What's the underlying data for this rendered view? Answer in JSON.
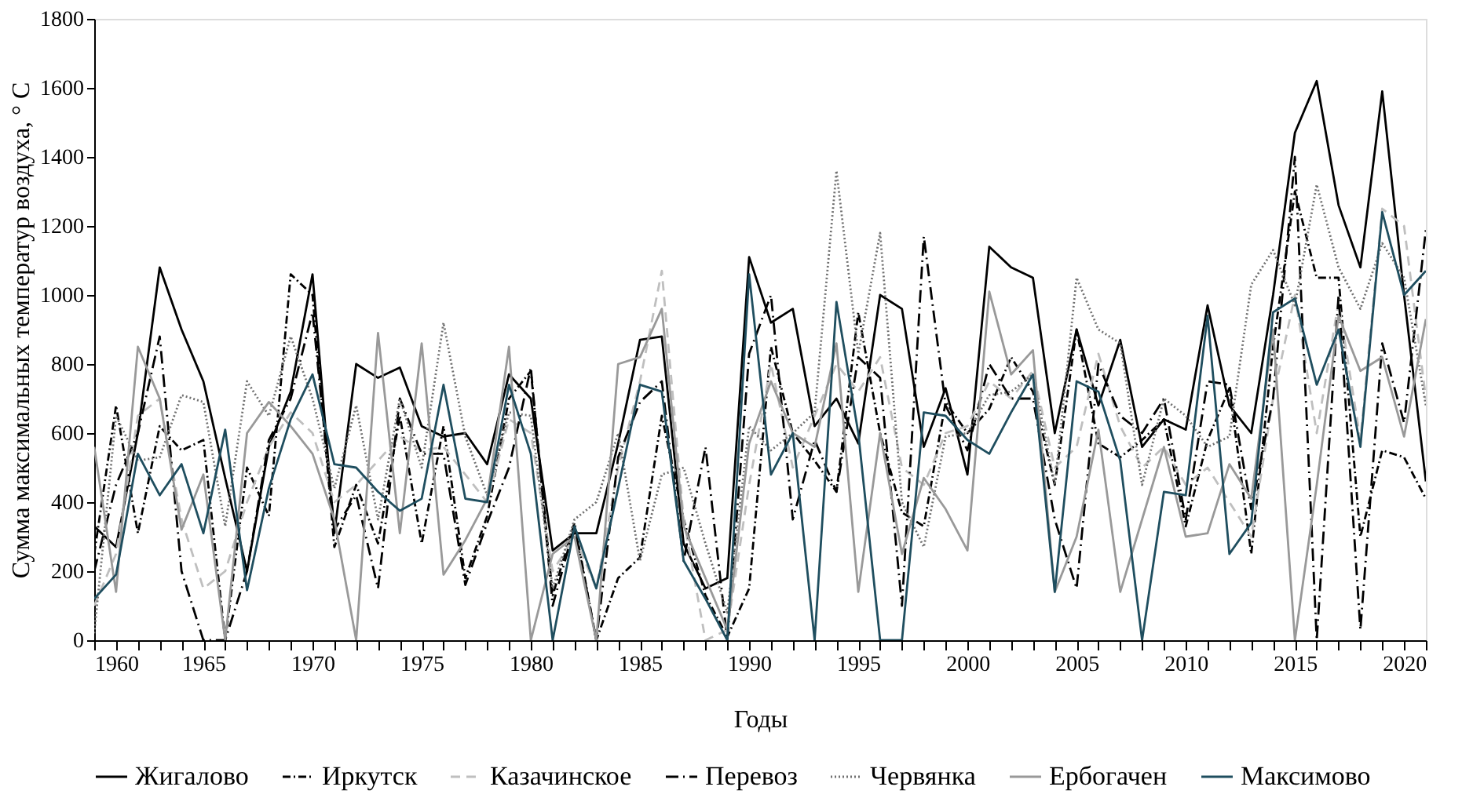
{
  "chart_data": {
    "type": "line",
    "xlabel": "Годы",
    "ylabel": "Сумма максимальных температур воздуха, ° С",
    "x": [
      1960,
      1961,
      1962,
      1963,
      1964,
      1965,
      1966,
      1967,
      1968,
      1969,
      1970,
      1971,
      1972,
      1973,
      1974,
      1975,
      1976,
      1977,
      1978,
      1979,
      1980,
      1981,
      1982,
      1983,
      1984,
      1985,
      1986,
      1987,
      1988,
      1989,
      1990,
      1991,
      1992,
      1993,
      1994,
      1995,
      1996,
      1997,
      1998,
      1999,
      2000,
      2001,
      2002,
      2003,
      2004,
      2005,
      2006,
      2007,
      2008,
      2009,
      2010,
      2011,
      2012,
      2013,
      2014,
      2015,
      2016,
      2017,
      2018,
      2019,
      2020,
      2021
    ],
    "xlim": [
      1960,
      2021
    ],
    "xticks": [
      1960,
      {
        "value": 1961,
        "label": null
      },
      {
        "value": 1962,
        "label": null
      },
      {
        "value": 1963,
        "label": null
      },
      {
        "value": 1964,
        "label": null
      },
      1965,
      {
        "value": 1966,
        "label": null
      },
      {
        "value": 1967,
        "label": null
      },
      {
        "value": 1968,
        "label": null
      },
      {
        "value": 1969,
        "label": null
      },
      1970,
      {
        "value": 1971,
        "label": null
      },
      {
        "value": 1972,
        "label": null
      },
      {
        "value": 1973,
        "label": null
      },
      {
        "value": 1974,
        "label": null
      },
      1975,
      {
        "value": 1976,
        "label": null
      },
      {
        "value": 1977,
        "label": null
      },
      {
        "value": 1978,
        "label": null
      },
      {
        "value": 1979,
        "label": null
      },
      1980,
      {
        "value": 1981,
        "label": null
      },
      {
        "value": 1982,
        "label": null
      },
      {
        "value": 1983,
        "label": null
      },
      {
        "value": 1984,
        "label": null
      },
      1985,
      {
        "value": 1986,
        "label": null
      },
      {
        "value": 1987,
        "label": null
      },
      {
        "value": 1988,
        "label": null
      },
      {
        "value": 1989,
        "label": null
      },
      1990,
      {
        "value": 1991,
        "label": null
      },
      {
        "value": 1992,
        "label": null
      },
      {
        "value": 1993,
        "label": null
      },
      {
        "value": 1994,
        "label": null
      },
      1995,
      {
        "value": 1996,
        "label": null
      },
      {
        "value": 1997,
        "label": null
      },
      {
        "value": 1998,
        "label": null
      },
      {
        "value": 1999,
        "label": null
      },
      2000,
      {
        "value": 2001,
        "label": null
      },
      {
        "value": 2002,
        "label": null
      },
      {
        "value": 2003,
        "label": null
      },
      {
        "value": 2004,
        "label": null
      },
      2005,
      {
        "value": 2006,
        "label": null
      },
      {
        "value": 2007,
        "label": null
      },
      {
        "value": 2008,
        "label": null
      },
      {
        "value": 2009,
        "label": null
      },
      2010,
      {
        "value": 2011,
        "label": null
      },
      {
        "value": 2012,
        "label": null
      },
      {
        "value": 2013,
        "label": null
      },
      {
        "value": 2014,
        "label": null
      },
      2015,
      {
        "value": 2016,
        "label": null
      },
      {
        "value": 2017,
        "label": null
      },
      {
        "value": 2018,
        "label": null
      },
      {
        "value": 2019,
        "label": null
      },
      2020,
      {
        "value": 2021,
        "label": null
      }
    ],
    "ylim": [
      0,
      1800
    ],
    "yticks": [
      0,
      200,
      400,
      600,
      800,
      1000,
      1200,
      1400,
      1600,
      1800
    ],
    "grid": false,
    "legend": "bottom",
    "marker": "none",
    "series": [
      {
        "name": "Жигалово",
        "color": "#000000",
        "line_style": "solid",
        "values": [
          330,
          270,
          600,
          1080,
          900,
          750,
          470,
          200,
          560,
          720,
          1060,
          310,
          800,
          760,
          790,
          620,
          590,
          600,
          510,
          770,
          700,
          260,
          310,
          310,
          570,
          870,
          880,
          280,
          150,
          180,
          1110,
          920,
          960,
          620,
          700,
          570,
          1000,
          960,
          560,
          730,
          480,
          1140,
          1080,
          1050,
          600,
          900,
          680,
          870,
          560,
          640,
          610,
          970,
          680,
          600,
          1000,
          1470,
          1620,
          1260,
          1080,
          1590,
          1000,
          460
        ]
      },
      {
        "name": "Иркутск",
        "color": "#000000",
        "line_style": "dashdot",
        "values": [
          250,
          680,
          310,
          620,
          550,
          580,
          0,
          500,
          360,
          1060,
          1000,
          270,
          450,
          280,
          650,
          280,
          620,
          180,
          360,
          700,
          780,
          130,
          340,
          0,
          180,
          240,
          650,
          350,
          130,
          10,
          150,
          850,
          600,
          520,
          430,
          950,
          600,
          370,
          330,
          690,
          600,
          670,
          820,
          720,
          450,
          900,
          570,
          530,
          580,
          640,
          330,
          580,
          730,
          250,
          850,
          1300,
          1050,
          1050,
          300,
          550,
          530,
          410
        ]
      },
      {
        "name": "Казачинское",
        "color": "#bfbfbf",
        "line_style": "dashed",
        "values": [
          100,
          250,
          650,
          700,
          350,
          150,
          200,
          400,
          560,
          660,
          600,
          400,
          450,
          520,
          590,
          550,
          560,
          480,
          400,
          640,
          600,
          200,
          300,
          150,
          500,
          750,
          1070,
          350,
          0,
          30,
          450,
          800,
          500,
          650,
          800,
          720,
          820,
          500,
          450,
          600,
          620,
          750,
          700,
          780,
          500,
          560,
          830,
          620,
          500,
          560,
          450,
          500,
          400,
          300,
          700,
          1000,
          600,
          980,
          580,
          1250,
          1200,
          700
        ]
      },
      {
        "name": "Перевоз",
        "color": "#000000",
        "line_style": "longdashdot",
        "values": [
          200,
          450,
          600,
          880,
          200,
          0,
          0,
          200,
          580,
          700,
          950,
          320,
          420,
          150,
          700,
          540,
          540,
          160,
          340,
          500,
          790,
          100,
          330,
          0,
          530,
          690,
          750,
          230,
          560,
          0,
          830,
          1000,
          350,
          580,
          430,
          820,
          760,
          100,
          1170,
          680,
          550,
          800,
          700,
          700,
          350,
          150,
          800,
          650,
          600,
          700,
          350,
          750,
          740,
          380,
          700,
          1400,
          0,
          1000,
          30,
          860,
          630,
          1190
        ]
      },
      {
        "name": "Червянка",
        "color": "#707070",
        "line_style": "dotted",
        "values": [
          20,
          650,
          520,
          530,
          710,
          690,
          330,
          750,
          650,
          880,
          700,
          440,
          680,
          350,
          700,
          500,
          920,
          590,
          420,
          660,
          650,
          150,
          350,
          400,
          600,
          230,
          480,
          500,
          280,
          80,
          620,
          550,
          600,
          660,
          1360,
          830,
          1180,
          400,
          270,
          590,
          600,
          710,
          720,
          770,
          450,
          1050,
          900,
          860,
          450,
          700,
          650,
          560,
          590,
          1030,
          1130,
          970,
          1320,
          1080,
          960,
          1150,
          1050,
          680
        ]
      },
      {
        "name": "Ербогачен",
        "color": "#999999",
        "line_style": "solid",
        "values": [
          560,
          140,
          850,
          700,
          320,
          480,
          0,
          600,
          690,
          620,
          540,
          350,
          0,
          890,
          310,
          860,
          190,
          290,
          410,
          850,
          0,
          250,
          300,
          0,
          800,
          820,
          960,
          330,
          180,
          30,
          570,
          750,
          600,
          560,
          860,
          140,
          600,
          250,
          470,
          380,
          260,
          1010,
          770,
          840,
          140,
          300,
          610,
          140,
          350,
          560,
          300,
          310,
          510,
          410,
          900,
          0,
          450,
          940,
          780,
          820,
          590,
          930
        ]
      },
      {
        "name": "Максимово",
        "color": "#1f4e5f",
        "line_style": "solid",
        "values": [
          120,
          190,
          540,
          420,
          510,
          310,
          610,
          145,
          440,
          640,
          770,
          510,
          500,
          430,
          375,
          410,
          740,
          410,
          400,
          740,
          540,
          0,
          330,
          150,
          440,
          740,
          720,
          230,
          120,
          0,
          1060,
          480,
          600,
          0,
          980,
          600,
          0,
          0,
          660,
          650,
          580,
          540,
          660,
          770,
          140,
          750,
          720,
          520,
          0,
          430,
          420,
          940,
          250,
          340,
          950,
          990,
          740,
          900,
          560,
          1240,
          1000,
          1070
        ]
      }
    ]
  }
}
